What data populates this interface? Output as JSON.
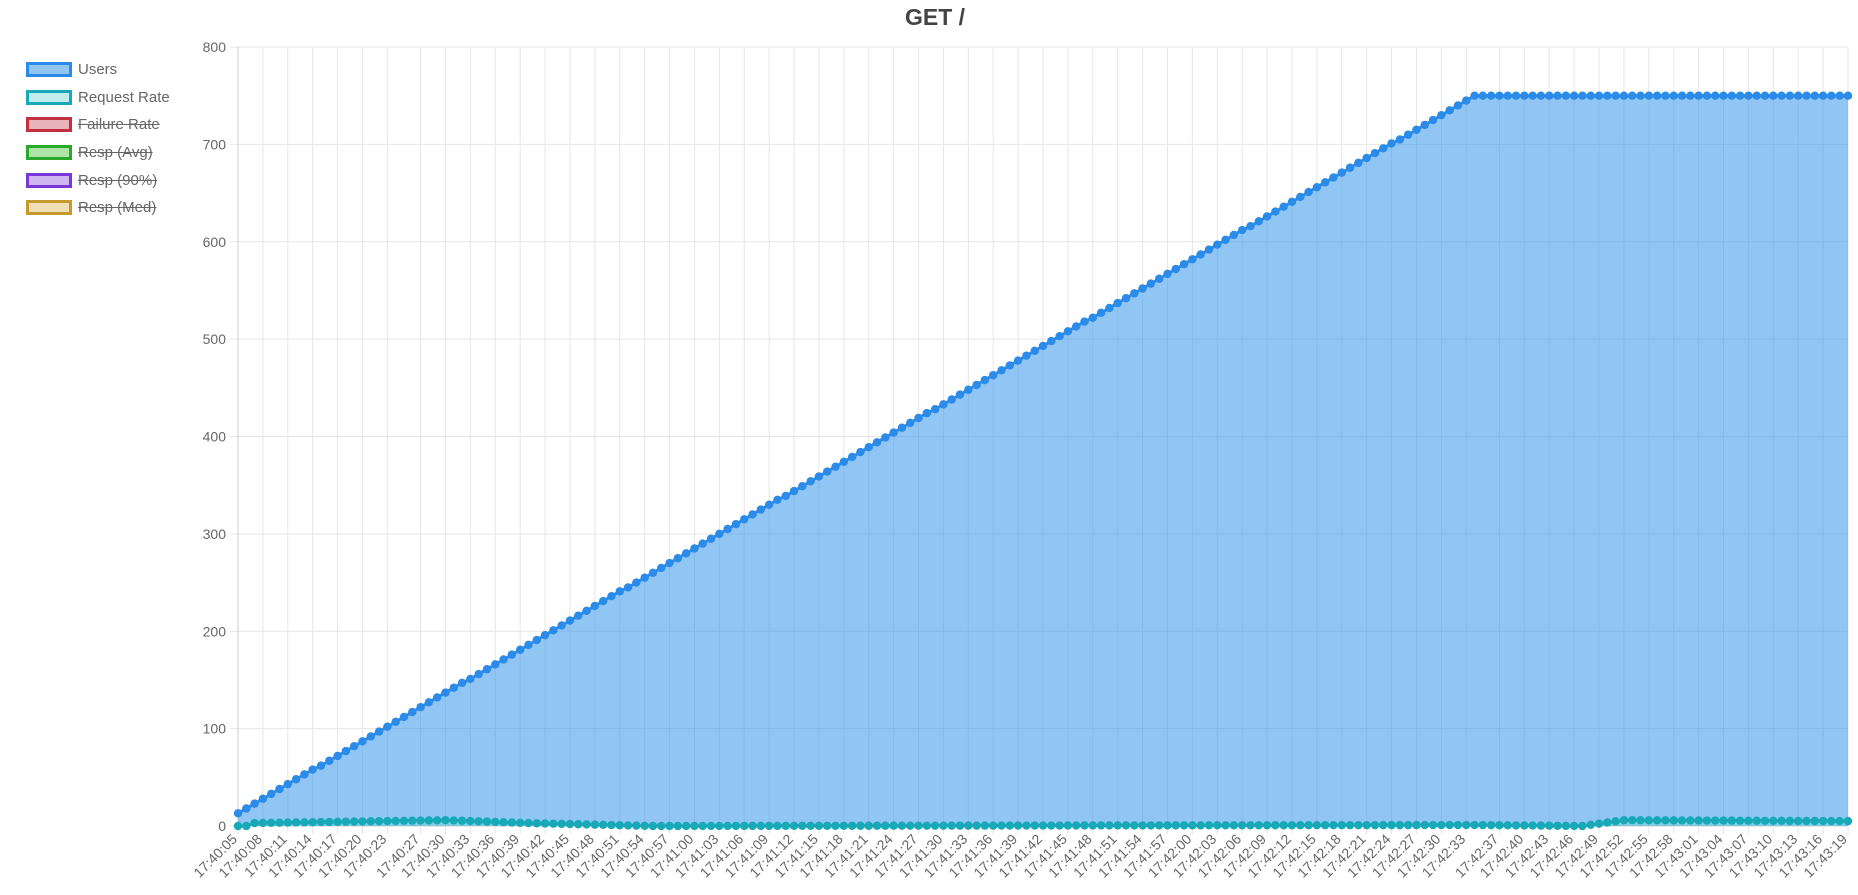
{
  "chart_data": {
    "type": "area",
    "title": "GET /",
    "xlabel": "",
    "ylabel": "",
    "ylim": [
      0,
      800
    ],
    "y_ticks": [
      0,
      100,
      200,
      300,
      400,
      500,
      600,
      700,
      800
    ],
    "grid": true,
    "legend_position": "left",
    "x_start": "17:40:05",
    "x_end": "17:43:19",
    "x_interval_seconds": 1,
    "x_tick_labels": [
      "17:40:05",
      "17:40:08",
      "17:40:11",
      "17:40:14",
      "17:40:17",
      "17:40:20",
      "17:40:23",
      "17:40:27",
      "17:40:30",
      "17:40:33",
      "17:40:36",
      "17:40:39",
      "17:40:42",
      "17:40:45",
      "17:40:48",
      "17:40:51",
      "17:40:54",
      "17:40:57",
      "17:41:00",
      "17:41:03",
      "17:41:06",
      "17:41:09",
      "17:41:12",
      "17:41:15",
      "17:41:18",
      "17:41:21",
      "17:41:24",
      "17:41:27",
      "17:41:30",
      "17:41:33",
      "17:41:36",
      "17:41:39",
      "17:41:42",
      "17:41:45",
      "17:41:48",
      "17:41:51",
      "17:41:54",
      "17:41:57",
      "17:42:00",
      "17:42:03",
      "17:42:06",
      "17:42:09",
      "17:42:12",
      "17:42:15",
      "17:42:18",
      "17:42:21",
      "17:42:24",
      "17:42:27",
      "17:42:30",
      "17:42:33",
      "17:42:37",
      "17:42:40",
      "17:42:43",
      "17:42:46",
      "17:42:49",
      "17:42:52",
      "17:42:55",
      "17:42:58",
      "17:43:01",
      "17:43:04",
      "17:43:07",
      "17:43:10",
      "17:43:13",
      "17:43:16",
      "17:43:19"
    ],
    "series": [
      {
        "name": "Users",
        "color": "#2b8be8",
        "fill": "rgba(54,150,235,0.55)",
        "visible": true,
        "segments": [
          {
            "from": "17:40:05",
            "to": "17:42:34",
            "start_value": 13,
            "end_value": 750
          },
          {
            "from": "17:42:34",
            "to": "17:43:19",
            "start_value": 750,
            "end_value": 750
          }
        ]
      },
      {
        "name": "Request Rate",
        "color": "#17a9b8",
        "fill": "rgba(120,215,215,0.45)",
        "visible": true,
        "keyframes": [
          {
            "t": "17:40:05",
            "value": 0
          },
          {
            "t": "17:40:06",
            "value": 0
          },
          {
            "t": "17:40:07",
            "value": 3
          },
          {
            "t": "17:40:30",
            "value": 6
          },
          {
            "t": "17:40:40",
            "value": 3
          },
          {
            "t": "17:40:55",
            "value": 0
          },
          {
            "t": "17:42:34",
            "value": 1
          },
          {
            "t": "17:42:47",
            "value": 0
          },
          {
            "t": "17:42:52",
            "value": 6
          },
          {
            "t": "17:43:19",
            "value": 5
          }
        ]
      },
      {
        "name": "Failure Rate",
        "color": "#c03040",
        "fill": "rgba(220,130,140,0.6)",
        "visible": false,
        "values": []
      },
      {
        "name": "Resp (Avg)",
        "color": "#2aa82a",
        "fill": "rgba(120,210,110,0.6)",
        "visible": false,
        "values": []
      },
      {
        "name": "Resp (90%)",
        "color": "#7b36d8",
        "fill": "rgba(175,135,230,0.6)",
        "visible": false,
        "values": []
      },
      {
        "name": "Resp (Med)",
        "color": "#c49a2c",
        "fill": "rgba(230,200,135,0.6)",
        "visible": false,
        "values": []
      }
    ]
  }
}
